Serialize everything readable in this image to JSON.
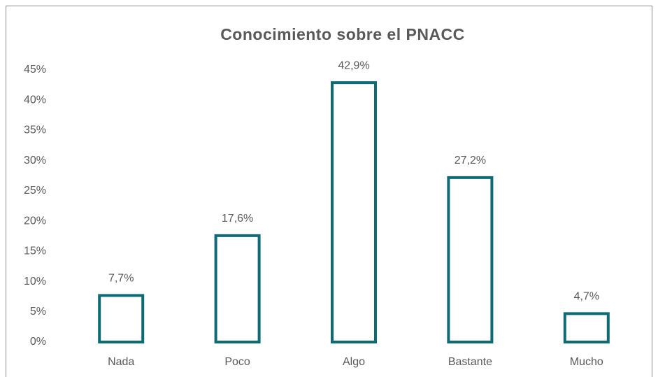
{
  "chart_data": {
    "type": "bar",
    "title": "Conocimiento sobre el PNACC",
    "categories": [
      "Nada",
      "Poco",
      "Algo",
      "Bastante",
      "Mucho"
    ],
    "values": [
      7.7,
      17.6,
      42.9,
      27.2,
      4.7
    ],
    "value_labels": [
      "7,7%",
      "17,6%",
      "42,9%",
      "27,2%",
      "4,7%"
    ],
    "color": "#0e6b76",
    "ylim": [
      0,
      45
    ],
    "yticks": [
      {
        "value": 0,
        "label": "0%"
      },
      {
        "value": 5,
        "label": "5%"
      },
      {
        "value": 10,
        "label": "10%"
      },
      {
        "value": 15,
        "label": "15%"
      },
      {
        "value": 20,
        "label": "20%"
      },
      {
        "value": 25,
        "label": "25%"
      },
      {
        "value": 30,
        "label": "30%"
      },
      {
        "value": 35,
        "label": "35%"
      },
      {
        "value": 40,
        "label": "40%"
      },
      {
        "value": 45,
        "label": "45%"
      }
    ],
    "grid": false
  }
}
